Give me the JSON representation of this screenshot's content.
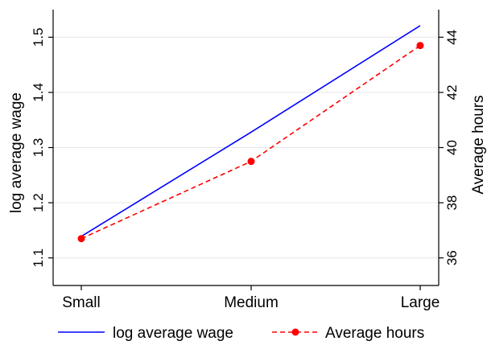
{
  "chart_data": {
    "type": "line",
    "categories": [
      "Small",
      "Medium",
      "Large"
    ],
    "left_axis": {
      "label": "log average wage",
      "ticks": [
        "1.1",
        "1.2",
        "1.3",
        "1.4",
        "1.5"
      ],
      "tick_values": [
        1.1,
        1.2,
        1.3,
        1.4,
        1.5
      ],
      "range": [
        1.05,
        1.55
      ]
    },
    "right_axis": {
      "label": "Average hours",
      "ticks": [
        "36",
        "38",
        "40",
        "42",
        "44"
      ],
      "tick_values": [
        36,
        38,
        40,
        42,
        44
      ],
      "range": [
        35,
        45
      ]
    },
    "series": [
      {
        "name": "log average wage",
        "axis": "left",
        "values": [
          1.139,
          1.328,
          1.521
        ],
        "color": "#0000ff",
        "style": "solid",
        "marker": "none"
      },
      {
        "name": "Average hours",
        "axis": "right",
        "values": [
          36.7,
          39.5,
          43.7
        ],
        "color": "#ff0000",
        "style": "dashed",
        "marker": "circle"
      }
    ],
    "grid": true,
    "legend_position": "bottom"
  }
}
